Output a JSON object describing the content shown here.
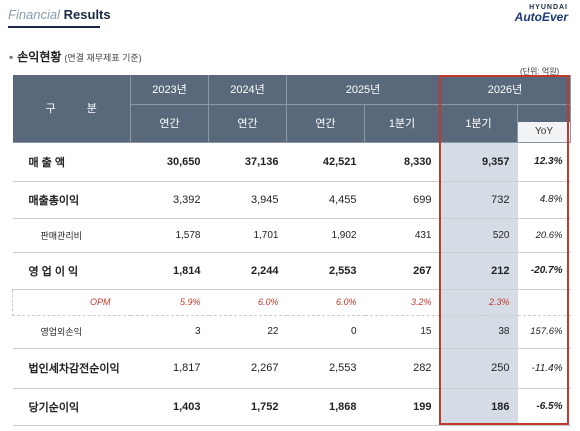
{
  "header": {
    "title_light": "Financial",
    "title_bold": "Results",
    "logo_top": "HYUNDAI",
    "logo_bottom": "AutoEver"
  },
  "section": {
    "bullet": "▪",
    "title": "손익현황",
    "subtitle": "(연결 재무제표 기준)",
    "unit": "(단위: 억원)"
  },
  "table": {
    "corner": "구 분",
    "years": [
      "2023년",
      "2024년",
      "2025년",
      "2026년"
    ],
    "periods": [
      "연간",
      "연간",
      "연간",
      "1분기",
      "1분기"
    ],
    "yoy": "YoY",
    "rows": [
      {
        "label": "매 출 액",
        "cells": [
          "30,650",
          "37,136",
          "42,521",
          "8,330",
          "9,357",
          "12.3%"
        ]
      },
      {
        "label": "매출총이익",
        "cells": [
          "3,392",
          "3,945",
          "4,455",
          "699",
          "732",
          "4.8%"
        ]
      },
      {
        "label": "판매관리비",
        "cells": [
          "1,578",
          "1,701",
          "1,902",
          "431",
          "520",
          "20.6%"
        ]
      },
      {
        "label": "영 업 이 익",
        "cells": [
          "1,814",
          "2,244",
          "2,553",
          "267",
          "212",
          "-20.7%"
        ]
      },
      {
        "label": "OPM",
        "cells": [
          "5.9%",
          "6.0%",
          "6.0%",
          "3.2%",
          "2.3%",
          ""
        ]
      },
      {
        "label": "영업외손익",
        "cells": [
          "3",
          "22",
          "0",
          "15",
          "38",
          "157.6%"
        ]
      },
      {
        "label": "법인세차감전순이익",
        "cells": [
          "1,817",
          "2,267",
          "2,553",
          "282",
          "250",
          "-11.4%"
        ]
      },
      {
        "label": "당기순이익",
        "cells": [
          "1,403",
          "1,752",
          "1,868",
          "199",
          "186",
          "-6.5%"
        ]
      }
    ]
  },
  "colors": {
    "header_bg": "#59687a",
    "highlight_col": "#d6dce6",
    "box_border": "#c0392b",
    "opm_text": "#c0392b"
  }
}
